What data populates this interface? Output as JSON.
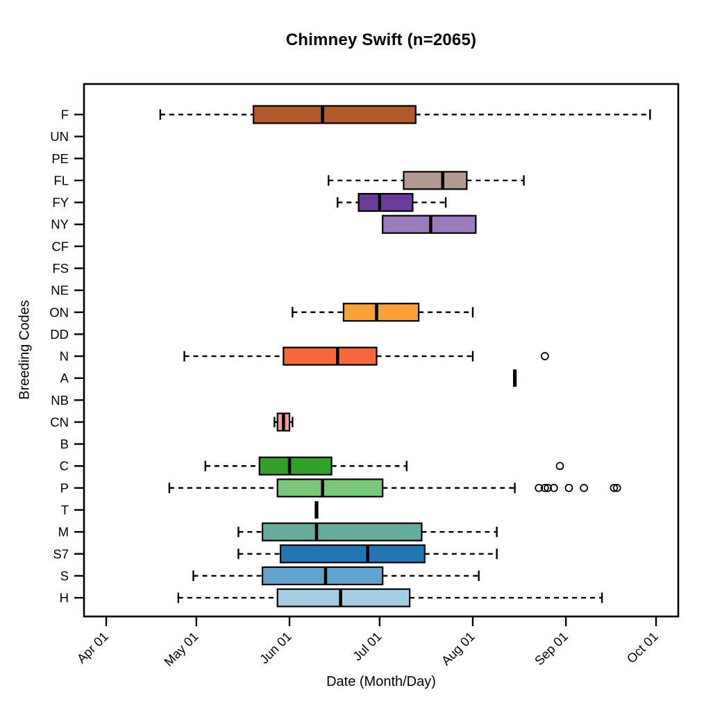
{
  "title": "Chimney Swift (n=2065)",
  "x_axis": {
    "label": "Date (Month/Day)"
  },
  "y_axis": {
    "label": "Breeding Codes"
  },
  "chart_data": {
    "type": "boxplot",
    "orientation": "horizontal",
    "value_unit": "day_of_year",
    "grid": false,
    "legend": "none",
    "xlim_days": [
      84,
      281
    ],
    "x_ticks": [
      {
        "day": 91,
        "label": "Apr 01"
      },
      {
        "day": 121,
        "label": "May 01"
      },
      {
        "day": 152,
        "label": "Jun 01"
      },
      {
        "day": 182,
        "label": "Jul 01"
      },
      {
        "day": 213,
        "label": "Aug 01"
      },
      {
        "day": 244,
        "label": "Sep 01"
      },
      {
        "day": 274,
        "label": "Oct 01"
      }
    ],
    "categories_top_to_bottom": [
      "F",
      "UN",
      "PE",
      "FL",
      "FY",
      "NY",
      "CF",
      "FS",
      "NE",
      "ON",
      "DD",
      "N",
      "A",
      "NB",
      "CN",
      "B",
      "C",
      "P",
      "T",
      "M",
      "S7",
      "S",
      "H"
    ],
    "series": [
      {
        "code": "F",
        "low": 109,
        "q1": 140,
        "median": 163,
        "q3": 194,
        "high": 272,
        "outliers": [],
        "color": "#B1592B"
      },
      {
        "code": "UN"
      },
      {
        "code": "PE"
      },
      {
        "code": "FL",
        "low": 165,
        "q1": 190,
        "median": 203,
        "q3": 211,
        "high": 230,
        "outliers": [],
        "color": "#B29A92"
      },
      {
        "code": "FY",
        "low": 168,
        "q1": 175,
        "median": 182,
        "q3": 193,
        "high": 204,
        "outliers": [],
        "color": "#6A3D9A"
      },
      {
        "code": "NY",
        "low": 183,
        "q1": 183,
        "median": 199,
        "q3": 214,
        "high": 214,
        "outliers": [],
        "color": "#9B7CBD"
      },
      {
        "code": "CF"
      },
      {
        "code": "FS"
      },
      {
        "code": "NE"
      },
      {
        "code": "ON",
        "low": 153,
        "q1": 170,
        "median": 181,
        "q3": 195,
        "high": 213,
        "outliers": [],
        "color": "#F9A13B"
      },
      {
        "code": "DD"
      },
      {
        "code": "N",
        "low": 117,
        "q1": 150,
        "median": 168,
        "q3": 181,
        "high": 213,
        "outliers": [
          237
        ],
        "color": "#F4683C"
      },
      {
        "code": "A",
        "single": 227
      },
      {
        "code": "NB"
      },
      {
        "code": "CN",
        "low": 147,
        "q1": 148,
        "median": 150,
        "q3": 152,
        "high": 153,
        "outliers": [],
        "color": "#FB9A99"
      },
      {
        "code": "B"
      },
      {
        "code": "C",
        "low": 124,
        "q1": 142,
        "median": 152,
        "q3": 166,
        "high": 191,
        "outliers": [
          242
        ],
        "color": "#33A02C"
      },
      {
        "code": "P",
        "low": 112,
        "q1": 148,
        "median": 163,
        "q3": 183,
        "high": 227,
        "outliers": [
          235,
          237,
          238,
          240,
          245,
          250,
          260,
          261
        ],
        "color": "#78C679"
      },
      {
        "code": "T",
        "single": 161
      },
      {
        "code": "M",
        "low": 135,
        "q1": 143,
        "median": 161,
        "q3": 196,
        "high": 221,
        "outliers": [],
        "color": "#66AB9C"
      },
      {
        "code": "S7",
        "low": 135,
        "q1": 149,
        "median": 178,
        "q3": 197,
        "high": 221,
        "outliers": [],
        "color": "#2176B5"
      },
      {
        "code": "S",
        "low": 120,
        "q1": 143,
        "median": 164,
        "q3": 183,
        "high": 215,
        "outliers": [],
        "color": "#63A3D0"
      },
      {
        "code": "H",
        "low": 115,
        "q1": 148,
        "median": 169,
        "q3": 192,
        "high": 256,
        "outliers": [],
        "color": "#A6CEE3"
      }
    ]
  }
}
